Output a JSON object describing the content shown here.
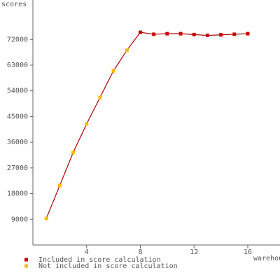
{
  "chart_data": {
    "type": "line",
    "y_label": "scores",
    "x_label": "warehouses",
    "x": [
      1,
      2,
      3,
      4,
      5,
      6,
      7,
      8,
      9,
      10,
      11,
      12,
      13,
      14,
      15,
      16
    ],
    "series": [
      {
        "name": "Included in score calculation",
        "color": "#cc0000",
        "values": [
          null,
          null,
          null,
          null,
          null,
          null,
          null,
          74500,
          73800,
          74000,
          74000,
          73700,
          73400,
          73600,
          73800,
          74000
        ]
      },
      {
        "name": "Not included in score calculation",
        "color": "#ffbb00",
        "values": [
          9300,
          20850,
          32400,
          42400,
          51700,
          61000,
          68200,
          null,
          null,
          null,
          null,
          null,
          null,
          null,
          null,
          null
        ]
      }
    ],
    "line_color": "#aa0000",
    "xlim": [
      0,
      18.4
    ],
    "xticks": [
      4,
      8,
      12,
      16
    ],
    "ylim": [
      0,
      85800
    ],
    "yticks": [
      9000,
      18000,
      27000,
      36000,
      45000,
      54000,
      63000,
      72000
    ]
  }
}
